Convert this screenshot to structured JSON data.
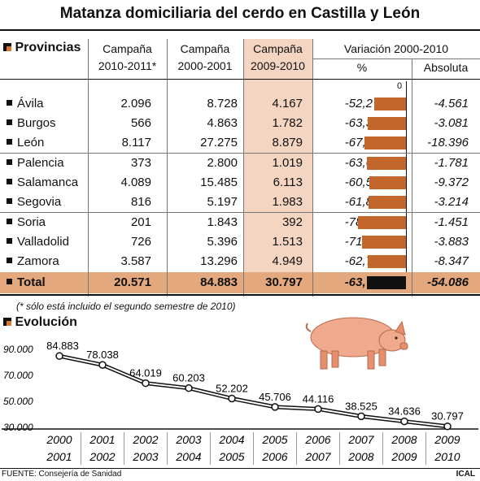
{
  "title": "Matanza domiciliaria del cerdo en Castilla y León",
  "table": {
    "section_label": "Provincias",
    "columns": {
      "c1": [
        "Campaña",
        "2010-2011*"
      ],
      "c2": [
        "Campaña",
        "2000-2001"
      ],
      "c3": [
        "Campaña",
        "2009-2010"
      ],
      "variation": "Variación 2000-2010",
      "pct": "%",
      "abs": "Absoluta"
    },
    "zero_label": "0",
    "rows": [
      {
        "name": "Ávila",
        "c1": "2.096",
        "c2": "8.728",
        "c3": "4.167",
        "pct": "-52,2",
        "pct_value": -52.2,
        "abs": "-4.561"
      },
      {
        "name": "Burgos",
        "c1": "566",
        "c2": "4.863",
        "c3": "1.782",
        "pct": "-63,3",
        "pct_value": -63.3,
        "abs": "-3.081"
      },
      {
        "name": "León",
        "c1": "8.117",
        "c2": "27.275",
        "c3": "8.879",
        "pct": "-67,4",
        "pct_value": -67.4,
        "abs": "-18.396"
      },
      {
        "name": "Palencia",
        "c1": "373",
        "c2": "2.800",
        "c3": "1.019",
        "pct": "-63,6",
        "pct_value": -63.6,
        "abs": "-1.781"
      },
      {
        "name": "Salamanca",
        "c1": "4.089",
        "c2": "15.485",
        "c3": "6.113",
        "pct": "-60,5",
        "pct_value": -60.5,
        "abs": "-9.372"
      },
      {
        "name": "Segovia",
        "c1": "816",
        "c2": "5.197",
        "c3": "1.983",
        "pct": "-61,8",
        "pct_value": -61.8,
        "abs": "-3.214"
      },
      {
        "name": "Soria",
        "c1": "201",
        "c2": "1.843",
        "c3": "392",
        "pct": "-78,7",
        "pct_value": -78.7,
        "abs": "-1.451"
      },
      {
        "name": "Valladolid",
        "c1": "726",
        "c2": "5.396",
        "c3": "1.513",
        "pct": "-71,9",
        "pct_value": -71.9,
        "abs": "-3.883"
      },
      {
        "name": "Zamora",
        "c1": "3.587",
        "c2": "13.296",
        "c3": "4.949",
        "pct": "-62,7",
        "pct_value": -62.7,
        "abs": "-8.347"
      }
    ],
    "total": {
      "name": "Total",
      "c1": "20.571",
      "c2": "84.883",
      "c3": "30.797",
      "pct": "-63,7",
      "pct_value": -63.7,
      "abs": "-54.086"
    },
    "footnote": "(* sólo está incluido el segundo semestre de 2010)"
  },
  "evolution_label": "Evolución",
  "source": "FUENTE: Consejería de Sanidad",
  "brand": "ICAL",
  "colors": {
    "bar": "#c2662c",
    "highlight": "#f3d5c1",
    "total_row": "#e3a87e",
    "pig": "#efa98c"
  },
  "chart_data": {
    "type": "line",
    "categories": [
      [
        "2000",
        "2001"
      ],
      [
        "2001",
        "2002"
      ],
      [
        "2002",
        "2003"
      ],
      [
        "2003",
        "2004"
      ],
      [
        "2004",
        "2005"
      ],
      [
        "2005",
        "2006"
      ],
      [
        "2006",
        "2007"
      ],
      [
        "2007",
        "2008"
      ],
      [
        "2008",
        "2009"
      ],
      [
        "2009",
        "2010"
      ]
    ],
    "values": [
      84883,
      78038,
      64019,
      60203,
      52202,
      45706,
      44116,
      38525,
      34636,
      30797
    ],
    "value_labels": [
      "84.883",
      "78.038",
      "64.019",
      "60.203",
      "52.202",
      "45.706",
      "44.116",
      "38.525",
      "34.636",
      "30.797"
    ],
    "y_ticks": [
      90000,
      70000,
      50000,
      30000
    ],
    "y_tick_labels": [
      "90.000",
      "70.000",
      "50.000",
      "30.000"
    ],
    "ylim": [
      30000,
      90000
    ],
    "grid": false
  }
}
